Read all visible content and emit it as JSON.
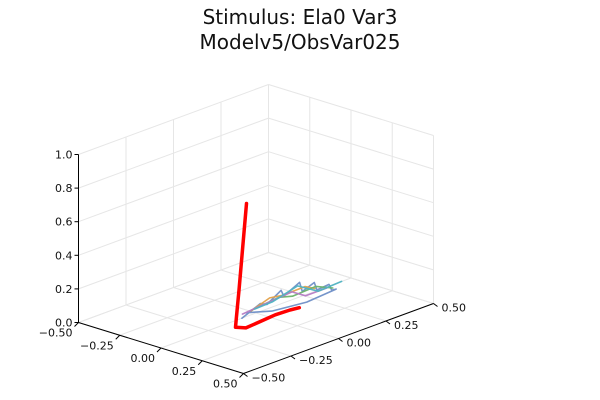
{
  "chart_data": {
    "type": "line3d",
    "title_line1": "Stimulus: Ela0 Var3",
    "title_line2": "Modelv5/ObsVar025",
    "x_ticks": [
      "−0.50",
      "−0.25",
      "0.00",
      "0.25",
      "0.50"
    ],
    "y_ticks": [
      "−0.50",
      "−0.25",
      "0.00",
      "0.25",
      "0.50"
    ],
    "z_ticks": [
      "0.0",
      "0.2",
      "0.4",
      "0.6",
      "0.8",
      "1.0"
    ],
    "xlim": [
      -0.5,
      0.5
    ],
    "ylim": [
      -0.5,
      0.5
    ],
    "zlim": [
      0,
      1
    ],
    "grid": true,
    "legend": "none",
    "series": [
      {
        "color": "#ff0000",
        "points": [
          [
            -0.38,
            0.28,
            0.42
          ],
          [
            -0.32,
            0.22,
            0.36
          ],
          [
            -0.26,
            0.16,
            0.3
          ],
          [
            -0.2,
            0.1,
            0.24
          ],
          [
            -0.14,
            0.04,
            0.18
          ],
          [
            -0.08,
            -0.02,
            0.12
          ],
          [
            -0.02,
            -0.08,
            0.07
          ],
          [
            0.03,
            -0.13,
            0.03
          ],
          [
            0.06,
            -0.16,
            0.0
          ],
          [
            0.1,
            -0.14,
            0.0
          ],
          [
            0.12,
            -0.08,
            0.02
          ],
          [
            0.14,
            -0.02,
            0.04
          ],
          [
            0.16,
            0.04,
            0.05
          ],
          [
            0.17,
            0.08,
            0.05
          ]
        ]
      },
      {
        "color": "#6f8fc7",
        "points": [
          [
            0.03,
            -0.1,
            0.02
          ],
          [
            0.05,
            -0.02,
            0.08
          ],
          [
            0.02,
            0.04,
            0.04
          ],
          [
            0.06,
            0.08,
            0.12
          ],
          [
            0.03,
            0.12,
            0.06
          ],
          [
            0.08,
            0.16,
            0.14
          ],
          [
            0.05,
            0.2,
            0.06
          ],
          [
            0.1,
            0.22,
            0.12
          ],
          [
            0.07,
            0.26,
            0.05
          ],
          [
            0.12,
            0.28,
            0.09
          ],
          [
            0.09,
            0.32,
            0.03
          ],
          [
            0.14,
            0.3,
            0.06
          ],
          [
            0.1,
            0.18,
            0.02
          ],
          [
            0.05,
            0.04,
            0.01
          ],
          [
            0.01,
            -0.06,
            0.03
          ]
        ]
      },
      {
        "color": "#e3a14a",
        "points": [
          [
            0.04,
            -0.06,
            0.05
          ],
          [
            0.06,
            0.02,
            0.1
          ],
          [
            0.05,
            0.1,
            0.08
          ],
          [
            0.09,
            0.18,
            0.11
          ],
          [
            0.08,
            0.24,
            0.07
          ]
        ]
      },
      {
        "color": "#6cb36c",
        "points": [
          [
            0.02,
            -0.04,
            0.04
          ],
          [
            0.07,
            0.06,
            0.09
          ],
          [
            0.06,
            0.14,
            0.06
          ],
          [
            0.11,
            0.22,
            0.1
          ],
          [
            0.12,
            0.3,
            0.06
          ]
        ]
      },
      {
        "color": "#b57cc4",
        "points": [
          [
            0.01,
            -0.08,
            0.03
          ],
          [
            0.04,
            0.0,
            0.06
          ],
          [
            0.08,
            0.12,
            0.1
          ],
          [
            0.07,
            0.2,
            0.04
          ],
          [
            0.13,
            0.26,
            0.08
          ]
        ]
      },
      {
        "color": "#4fb3c2",
        "points": [
          [
            0.05,
            -0.05,
            0.06
          ],
          [
            0.03,
            0.06,
            0.05
          ],
          [
            0.09,
            0.14,
            0.13
          ],
          [
            0.1,
            0.24,
            0.06
          ],
          [
            0.15,
            0.32,
            0.1
          ]
        ]
      }
    ]
  }
}
